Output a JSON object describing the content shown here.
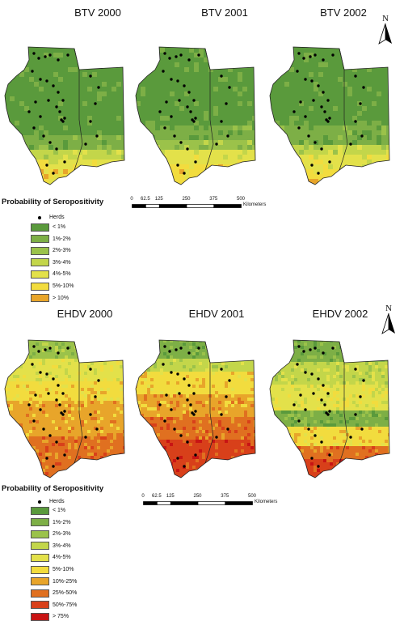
{
  "btv": {
    "maps": [
      {
        "title": "BTV 2000",
        "theme": "btv0"
      },
      {
        "title": "BTV 2001",
        "theme": "btv1"
      },
      {
        "title": "BTV 2002",
        "theme": "btv2"
      }
    ],
    "legend": {
      "title": "Probability of Seropositivity",
      "herds_label": "Herds",
      "classes": [
        {
          "label": "< 1%",
          "color": "#5a9a3c"
        },
        {
          "label": "1%-2%",
          "color": "#7daf46"
        },
        {
          "label": "2%-3%",
          "color": "#9bc24a"
        },
        {
          "label": "3%-4%",
          "color": "#c3d64a"
        },
        {
          "label": "4%-5%",
          "color": "#e3e14a"
        },
        {
          "label": "5%-10%",
          "color": "#f2dc3e"
        },
        {
          "label": "> 10%",
          "color": "#e8a52a"
        }
      ]
    },
    "scale": {
      "ticks": [
        "0",
        "62.5",
        "125",
        "250",
        "375",
        "500"
      ],
      "unit": "Kilometers"
    }
  },
  "ehdv": {
    "maps": [
      {
        "title": "EHDV 2000",
        "theme": "ehd0"
      },
      {
        "title": "EHDV 2001",
        "theme": "ehd1"
      },
      {
        "title": "EHDV 2002",
        "theme": "ehd2"
      }
    ],
    "legend": {
      "title": "Probability of Seropositivity",
      "herds_label": "Herds",
      "classes": [
        {
          "label": "< 1%",
          "color": "#5a9a3c"
        },
        {
          "label": "1%-2%",
          "color": "#7daf46"
        },
        {
          "label": "2%-3%",
          "color": "#9bc24a"
        },
        {
          "label": "3%-4%",
          "color": "#c3d64a"
        },
        {
          "label": "4%-5%",
          "color": "#e3e14a"
        },
        {
          "label": "5%-10%",
          "color": "#f2dc3e"
        },
        {
          "label": "10%-25%",
          "color": "#e8a52a"
        },
        {
          "label": "25%-50%",
          "color": "#e07020"
        },
        {
          "label": "50%-75%",
          "color": "#d8401a"
        },
        {
          "label": "> 75%",
          "color": "#c81414"
        }
      ]
    },
    "scale": {
      "ticks": [
        "0",
        "62.5",
        "125",
        "250",
        "375",
        "500"
      ],
      "unit": "Kilometers"
    }
  },
  "north_label": "N",
  "colors": {
    "herd": "#000000",
    "outline": "#222222"
  }
}
